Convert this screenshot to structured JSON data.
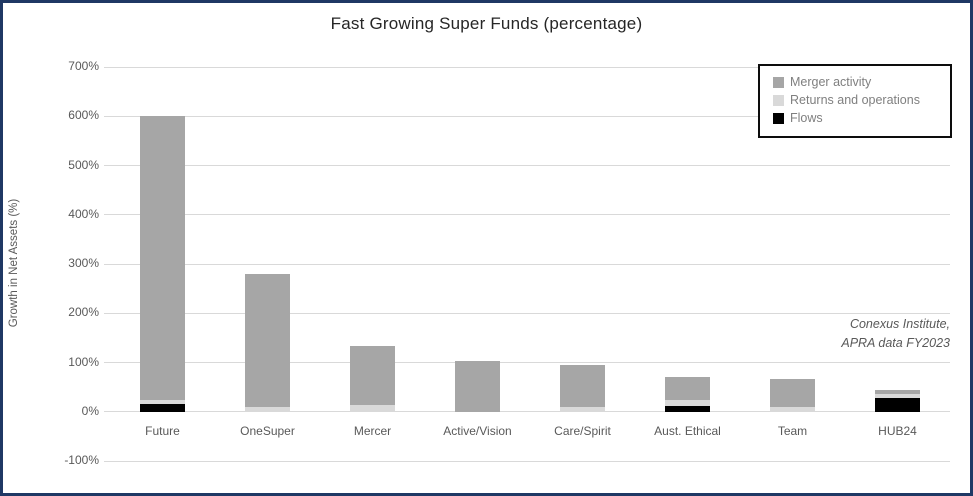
{
  "title": "Fast Growing Super Funds (percentage)",
  "y_axis_title": "Growth in Net Assets (%)",
  "annotation": {
    "line1": "Conexus Institute,",
    "line2": "APRA data FY2023"
  },
  "legend": {
    "items": [
      {
        "label": "Merger activity",
        "color": "#a6a6a6"
      },
      {
        "label": "Returns and operations",
        "color": "#d9d9d9"
      },
      {
        "label": "Flows",
        "color": "#000000"
      }
    ]
  },
  "colors": {
    "frame_border": "#1f3864",
    "gridline": "#d9d9d9",
    "axis_text": "#595959",
    "legend_text": "#7f7f7f",
    "title_text": "#262626",
    "merger_activity": "#a6a6a6",
    "returns_and_operations": "#d9d9d9",
    "flows": "#000000"
  },
  "chart_data": {
    "type": "bar",
    "stacked": true,
    "title": "Fast Growing Super Funds (percentage)",
    "xlabel": "",
    "ylabel": "Growth in Net Assets (%)",
    "ylim": [
      -100,
      700
    ],
    "ytick_step": 100,
    "ytick_labels": [
      "700%",
      "600%",
      "500%",
      "400%",
      "300%",
      "200%",
      "100%",
      "0%",
      "-100%"
    ],
    "grid": true,
    "legend_position": "top-right",
    "categories": [
      "Future",
      "OneSuper",
      "Mercer",
      "Active/Vision",
      "Care/Spirit",
      "Aust. Ethical",
      "Team",
      "HUB24"
    ],
    "series": [
      {
        "name": "Flows",
        "color": "#000000",
        "values": [
          15,
          0,
          0,
          0,
          0,
          11,
          0,
          28
        ]
      },
      {
        "name": "Returns and operations",
        "color": "#d9d9d9",
        "values": [
          9,
          10,
          13,
          0,
          10,
          13,
          9,
          9
        ]
      },
      {
        "name": "Merger activity",
        "color": "#a6a6a6",
        "values": [
          576,
          270,
          120,
          103,
          84,
          46,
          58,
          7
        ]
      }
    ],
    "totals": [
      600,
      280,
      133,
      103,
      94,
      70,
      67,
      44
    ],
    "source_note": "Conexus Institute, APRA data FY2023"
  }
}
